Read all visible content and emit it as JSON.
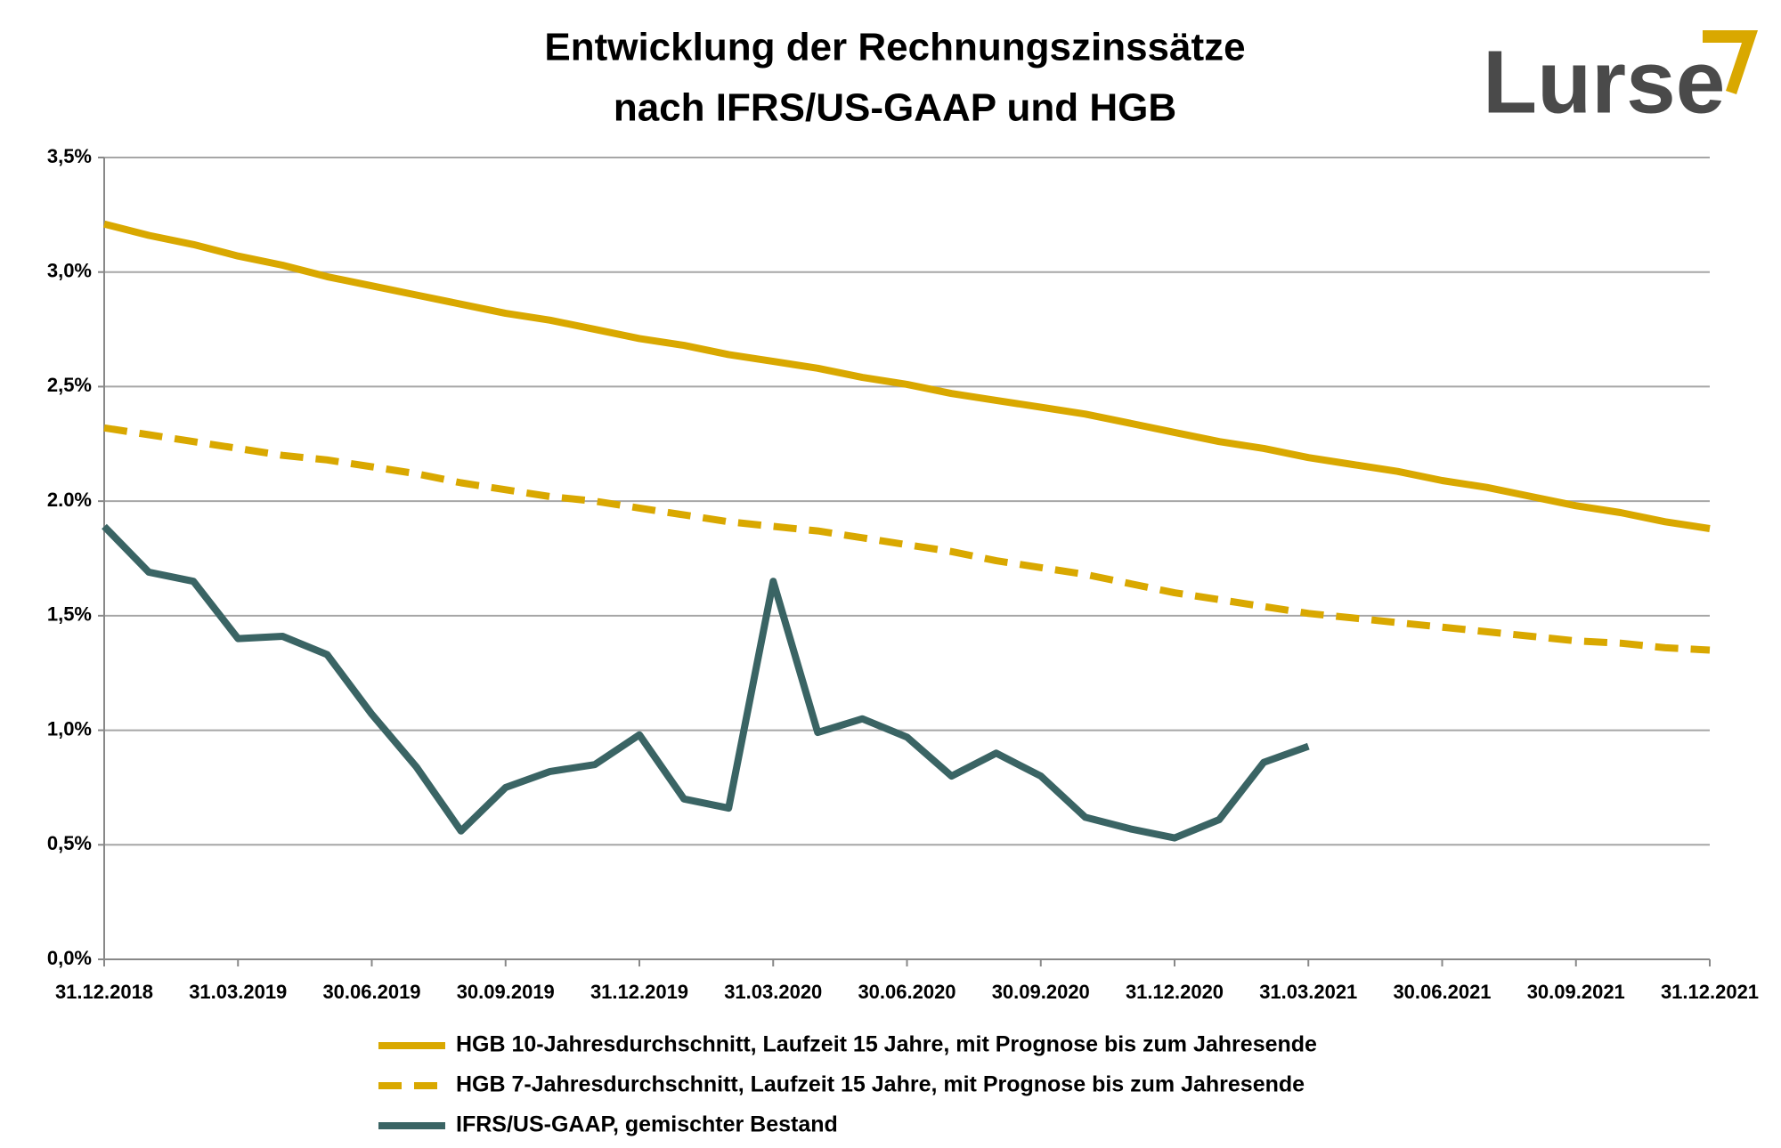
{
  "chart_data": {
    "type": "line",
    "title": [
      "Entwicklung der Rechnungszinssätze",
      "nach IFRS/US-GAAP und HGB"
    ],
    "logo": "Lurse",
    "categories": [
      "31.12.2018",
      null,
      null,
      "31.03.2019",
      null,
      null,
      "30.06.2019",
      null,
      null,
      "30.09.2019",
      null,
      null,
      "31.12.2019",
      null,
      null,
      "31.03.2020",
      null,
      null,
      "30.06.2020",
      null,
      null,
      "30.09.2020",
      null,
      null,
      "31.12.2020",
      null,
      null,
      "31.03.2021",
      null,
      null,
      "30.06.2021",
      null,
      null,
      "30.09.2021",
      null,
      null,
      "31.12.2021"
    ],
    "series": [
      {
        "name": "HGB 10-Jahresdurchschnitt, Laufzeit 15 Jahre, mit Prognose bis zum Jahresende",
        "color": "#d9a800",
        "dashed": false,
        "values": [
          3.21,
          3.16,
          3.12,
          3.07,
          3.03,
          2.98,
          2.94,
          2.9,
          2.86,
          2.82,
          2.79,
          2.75,
          2.71,
          2.68,
          2.64,
          2.61,
          2.58,
          2.54,
          2.51,
          2.47,
          2.44,
          2.41,
          2.38,
          2.34,
          2.3,
          2.26,
          2.23,
          2.19,
          2.16,
          2.13,
          2.09,
          2.06,
          2.02,
          1.98,
          1.95,
          1.91,
          1.88
        ]
      },
      {
        "name": "HGB 7-Jahresdurchschnitt, Laufzeit 15 Jahre, mit Prognose bis zum Jahresende",
        "color": "#d9a800",
        "dashed": true,
        "values": [
          2.32,
          2.29,
          2.26,
          2.23,
          2.2,
          2.18,
          2.15,
          2.12,
          2.08,
          2.05,
          2.02,
          2.0,
          1.97,
          1.94,
          1.91,
          1.89,
          1.87,
          1.84,
          1.81,
          1.78,
          1.74,
          1.71,
          1.68,
          1.64,
          1.6,
          1.57,
          1.54,
          1.51,
          1.49,
          1.47,
          1.45,
          1.43,
          1.41,
          1.39,
          1.38,
          1.36,
          1.35
        ]
      },
      {
        "name": "IFRS/US-GAAP, gemischter Bestand",
        "color": "#3a6464",
        "dashed": false,
        "values": [
          1.89,
          1.69,
          1.65,
          1.4,
          1.41,
          1.33,
          1.07,
          0.84,
          0.56,
          0.75,
          0.82,
          0.85,
          0.98,
          0.7,
          0.66,
          1.65,
          0.99,
          1.05,
          0.97,
          0.8,
          0.9,
          0.8,
          0.62,
          0.57,
          0.53,
          0.61,
          0.86,
          0.93,
          null,
          null,
          null,
          null,
          null,
          null,
          null,
          null,
          null
        ]
      }
    ],
    "ylim": [
      0,
      3.5
    ],
    "yticks": [
      {
        "value": 0,
        "label": "0,0%"
      },
      {
        "value": 0.5,
        "label": "0,5%"
      },
      {
        "value": 1,
        "label": "1,0%"
      },
      {
        "value": 1.5,
        "label": "1,5%"
      },
      {
        "value": 2,
        "label": "2.0%"
      },
      {
        "value": 2.5,
        "label": "2,5%"
      },
      {
        "value": 3,
        "label": "3,0%"
      },
      {
        "value": 3.5,
        "label": "3,5%"
      }
    ],
    "grid": true,
    "legend": "bottom"
  }
}
